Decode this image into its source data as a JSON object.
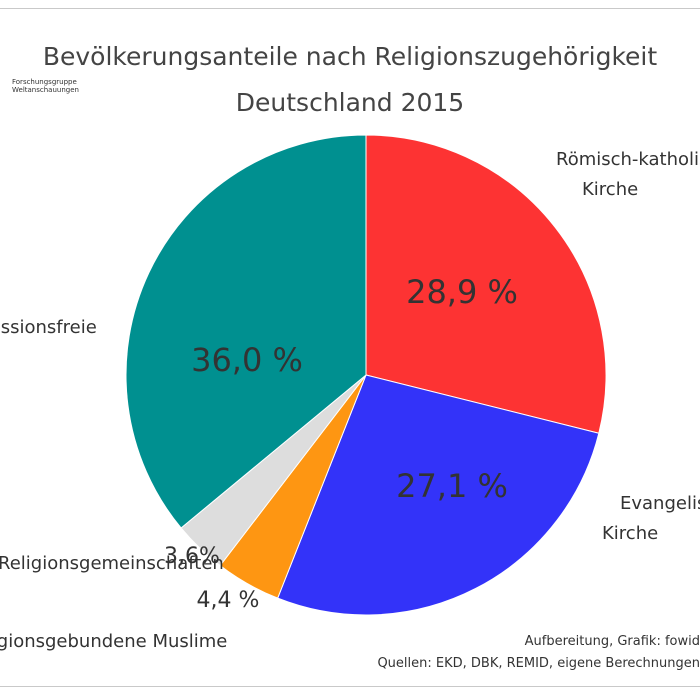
{
  "chart_data": {
    "type": "pie",
    "title": "Bevölkerungsanteile nach Religionszugehörigkeit",
    "subtitle": "Deutschland 2015",
    "slices": [
      {
        "name_lines": [
          "Römisch-katholische",
          "Kirche"
        ],
        "value": 28.9,
        "value_label": "28,9 %",
        "color": "#fd3333"
      },
      {
        "name_lines": [
          "Evangelische",
          "Kirche"
        ],
        "value": 27.1,
        "value_label": "27,1 %",
        "color": "#3333f9"
      },
      {
        "name_lines": [
          "Religionsgebundene Muslime"
        ],
        "value": 4.4,
        "value_label": "4,4 %",
        "color": "#fe9612"
      },
      {
        "name_lines": [
          "Andere Religionsgemeinschaften"
        ],
        "value": 3.6,
        "value_label": "3,6%",
        "color": "#dddddd"
      },
      {
        "name_lines": [
          "Konfessionsfreie"
        ],
        "value": 36.0,
        "value_label": "36,0 %",
        "color": "#009090"
      }
    ]
  },
  "logo_lines": [
    "Forschungsgruppe",
    "Weltanschauungen"
  ],
  "footer": {
    "line1": "Aufbereitung, Grafik: fowid",
    "line2": "Quellen: EKD, DBK, REMID,  eigene Berechnungen"
  }
}
